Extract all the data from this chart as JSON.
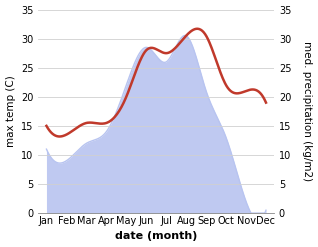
{
  "months": [
    "Jan",
    "Feb",
    "Mar",
    "Apr",
    "May",
    "Jun",
    "Jul",
    "Aug",
    "Sep",
    "Oct",
    "Nov",
    "Dec"
  ],
  "month_positions": [
    1,
    2,
    3,
    4,
    5,
    6,
    7,
    8,
    9,
    10,
    11,
    12
  ],
  "temp_max": [
    15.0,
    13.5,
    15.5,
    15.5,
    20.0,
    28.0,
    27.5,
    30.5,
    30.5,
    22.0,
    21.0,
    19.0
  ],
  "precipitation": [
    11.0,
    9.0,
    12.0,
    14.0,
    22.0,
    28.5,
    26.0,
    30.5,
    21.0,
    13.0,
    2.0,
    0.5
  ],
  "temp_color": "#c0392b",
  "precip_fill_color": "#b8c4f0",
  "background_color": "#ffffff",
  "ylim": [
    0,
    35
  ],
  "yticks": [
    0,
    5,
    10,
    15,
    20,
    25,
    30,
    35
  ],
  "xlabel": "date (month)",
  "ylabel_left": "max temp (C)",
  "ylabel_right": "med. precipitation (kg/m2)",
  "grid_color": "#d0d0d0",
  "label_fontsize": 7.5,
  "axis_tick_fontsize": 7,
  "line_width": 1.8
}
